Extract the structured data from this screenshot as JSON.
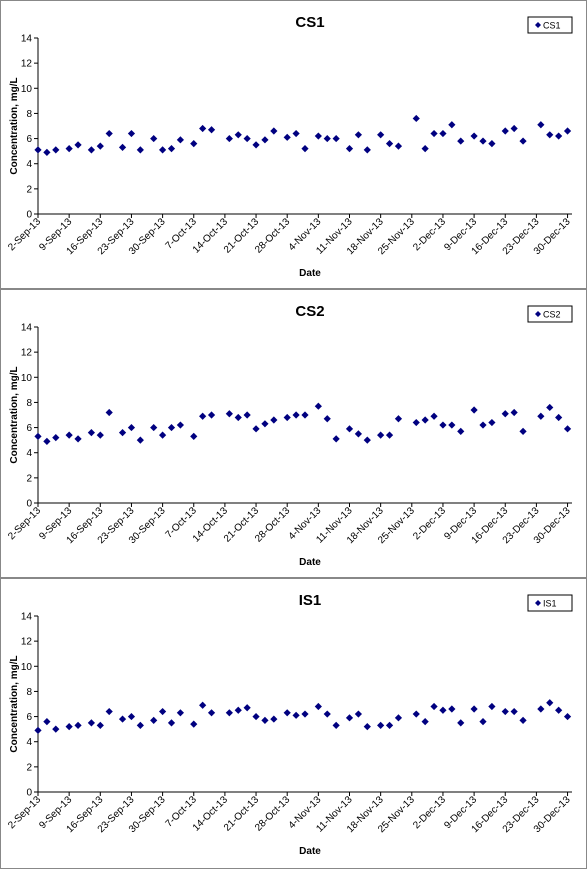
{
  "chart_data": [
    {
      "type": "scatter",
      "title": "CS1",
      "x_label": "Date",
      "y_label": "Concentration, mg/L",
      "legend": "top-right",
      "x": [
        "2013-09-02",
        "2013-09-04",
        "2013-09-06",
        "2013-09-09",
        "2013-09-11",
        "2013-09-14",
        "2013-09-16",
        "2013-09-18",
        "2013-09-21",
        "2013-09-23",
        "2013-09-25",
        "2013-09-28",
        "2013-09-30",
        "2013-10-02",
        "2013-10-04",
        "2013-10-07",
        "2013-10-09",
        "2013-10-11",
        "2013-10-15",
        "2013-10-17",
        "2013-10-19",
        "2013-10-21",
        "2013-10-23",
        "2013-10-25",
        "2013-10-28",
        "2013-10-30",
        "2013-11-01",
        "2013-11-04",
        "2013-11-06",
        "2013-11-08",
        "2013-11-11",
        "2013-11-13",
        "2013-11-15",
        "2013-11-18",
        "2013-11-20",
        "2013-11-22",
        "2013-11-26",
        "2013-11-28",
        "2013-11-30",
        "2013-12-02",
        "2013-12-04",
        "2013-12-06",
        "2013-12-09",
        "2013-12-11",
        "2013-12-13",
        "2013-12-16",
        "2013-12-18",
        "2013-12-20",
        "2013-12-24",
        "2013-12-26",
        "2013-12-28",
        "2013-12-30"
      ],
      "series": [
        {
          "name": "CS1",
          "color": "#000080",
          "values": [
            5.1,
            4.9,
            5.1,
            5.2,
            5.5,
            5.1,
            5.4,
            6.4,
            5.3,
            6.4,
            5.1,
            6.0,
            5.1,
            5.2,
            5.9,
            5.6,
            6.8,
            6.7,
            6.0,
            6.3,
            6.0,
            5.5,
            5.9,
            6.6,
            6.1,
            6.4,
            5.2,
            6.2,
            6.0,
            6.0,
            5.2,
            6.3,
            5.1,
            6.3,
            5.6,
            5.4,
            7.6,
            5.2,
            6.4,
            6.4,
            7.1,
            5.8,
            6.2,
            5.8,
            5.6,
            6.6,
            6.8,
            5.8,
            7.1,
            6.3,
            6.2,
            6.6
          ]
        }
      ],
      "xlim": [
        "2013-09-02",
        "2013-12-31"
      ],
      "xticks": [
        {
          "value": "2013-09-02",
          "label": "2-Sep-13"
        },
        {
          "value": "2013-09-09",
          "label": "9-Sep-13"
        },
        {
          "value": "2013-09-16",
          "label": "16-Sep-13"
        },
        {
          "value": "2013-09-23",
          "label": "23-Sep-13"
        },
        {
          "value": "2013-09-30",
          "label": "30-Sep-13"
        },
        {
          "value": "2013-10-07",
          "label": "7-Oct-13"
        },
        {
          "value": "2013-10-14",
          "label": "14-Oct-13"
        },
        {
          "value": "2013-10-21",
          "label": "21-Oct-13"
        },
        {
          "value": "2013-10-28",
          "label": "28-Oct-13"
        },
        {
          "value": "2013-11-04",
          "label": "4-Nov-13"
        },
        {
          "value": "2013-11-11",
          "label": "11-Nov-13"
        },
        {
          "value": "2013-11-18",
          "label": "18-Nov-13"
        },
        {
          "value": "2013-11-25",
          "label": "25-Nov-13"
        },
        {
          "value": "2013-12-02",
          "label": "2-Dec-13"
        },
        {
          "value": "2013-12-09",
          "label": "9-Dec-13"
        },
        {
          "value": "2013-12-16",
          "label": "16-Dec-13"
        },
        {
          "value": "2013-12-23",
          "label": "23-Dec-13"
        },
        {
          "value": "2013-12-30",
          "label": "30-Dec-13"
        }
      ],
      "ylim": [
        0,
        14
      ],
      "yticks": [
        0,
        2,
        4,
        6,
        8,
        10,
        12,
        14
      ]
    },
    {
      "type": "scatter",
      "title": "CS2",
      "x_label": "Date",
      "y_label": "Concentration, mg/L",
      "legend": "top-right",
      "x": [
        "2013-09-02",
        "2013-09-04",
        "2013-09-06",
        "2013-09-09",
        "2013-09-11",
        "2013-09-14",
        "2013-09-16",
        "2013-09-18",
        "2013-09-21",
        "2013-09-23",
        "2013-09-25",
        "2013-09-28",
        "2013-09-30",
        "2013-10-02",
        "2013-10-04",
        "2013-10-07",
        "2013-10-09",
        "2013-10-11",
        "2013-10-15",
        "2013-10-17",
        "2013-10-19",
        "2013-10-21",
        "2013-10-23",
        "2013-10-25",
        "2013-10-28",
        "2013-10-30",
        "2013-11-01",
        "2013-11-04",
        "2013-11-06",
        "2013-11-08",
        "2013-11-11",
        "2013-11-13",
        "2013-11-15",
        "2013-11-18",
        "2013-11-20",
        "2013-11-22",
        "2013-11-26",
        "2013-11-28",
        "2013-11-30",
        "2013-12-02",
        "2013-12-04",
        "2013-12-06",
        "2013-12-09",
        "2013-12-11",
        "2013-12-13",
        "2013-12-16",
        "2013-12-18",
        "2013-12-20",
        "2013-12-24",
        "2013-12-26",
        "2013-12-28",
        "2013-12-30"
      ],
      "series": [
        {
          "name": "CS2",
          "color": "#000080",
          "values": [
            5.3,
            4.9,
            5.2,
            5.4,
            5.1,
            5.6,
            5.4,
            7.2,
            5.6,
            6.0,
            5.0,
            6.0,
            5.4,
            6.0,
            6.2,
            5.3,
            6.9,
            7.0,
            7.1,
            6.8,
            7.0,
            5.9,
            6.3,
            6.6,
            6.8,
            7.0,
            7.0,
            7.7,
            6.7,
            5.1,
            5.9,
            5.5,
            5.0,
            5.4,
            5.4,
            6.7,
            6.4,
            6.6,
            6.9,
            6.2,
            6.2,
            5.7,
            7.4,
            6.2,
            6.4,
            7.1,
            7.2,
            5.7,
            6.9,
            7.6,
            6.8,
            5.9
          ]
        }
      ],
      "xlim": [
        "2013-09-02",
        "2013-12-31"
      ],
      "xticks": [
        {
          "value": "2013-09-02",
          "label": "2-Sep-13"
        },
        {
          "value": "2013-09-09",
          "label": "9-Sep-13"
        },
        {
          "value": "2013-09-16",
          "label": "16-Sep-13"
        },
        {
          "value": "2013-09-23",
          "label": "23-Sep-13"
        },
        {
          "value": "2013-09-30",
          "label": "30-Sep-13"
        },
        {
          "value": "2013-10-07",
          "label": "7-Oct-13"
        },
        {
          "value": "2013-10-14",
          "label": "14-Oct-13"
        },
        {
          "value": "2013-10-21",
          "label": "21-Oct-13"
        },
        {
          "value": "2013-10-28",
          "label": "28-Oct-13"
        },
        {
          "value": "2013-11-04",
          "label": "4-Nov-13"
        },
        {
          "value": "2013-11-11",
          "label": "11-Nov-13"
        },
        {
          "value": "2013-11-18",
          "label": "18-Nov-13"
        },
        {
          "value": "2013-11-25",
          "label": "25-Nov-13"
        },
        {
          "value": "2013-12-02",
          "label": "2-Dec-13"
        },
        {
          "value": "2013-12-09",
          "label": "9-Dec-13"
        },
        {
          "value": "2013-12-16",
          "label": "16-Dec-13"
        },
        {
          "value": "2013-12-23",
          "label": "23-Dec-13"
        },
        {
          "value": "2013-12-30",
          "label": "30-Dec-13"
        }
      ],
      "ylim": [
        0,
        14
      ],
      "yticks": [
        0,
        2,
        4,
        6,
        8,
        10,
        12,
        14
      ]
    },
    {
      "type": "scatter",
      "title": "IS1",
      "x_label": "Date",
      "y_label": "Concentration, mg/L",
      "legend": "top-right",
      "x": [
        "2013-09-02",
        "2013-09-04",
        "2013-09-06",
        "2013-09-09",
        "2013-09-11",
        "2013-09-14",
        "2013-09-16",
        "2013-09-18",
        "2013-09-21",
        "2013-09-23",
        "2013-09-25",
        "2013-09-28",
        "2013-09-30",
        "2013-10-02",
        "2013-10-04",
        "2013-10-07",
        "2013-10-09",
        "2013-10-11",
        "2013-10-15",
        "2013-10-17",
        "2013-10-19",
        "2013-10-21",
        "2013-10-23",
        "2013-10-25",
        "2013-10-28",
        "2013-10-30",
        "2013-11-01",
        "2013-11-04",
        "2013-11-06",
        "2013-11-08",
        "2013-11-11",
        "2013-11-13",
        "2013-11-15",
        "2013-11-18",
        "2013-11-20",
        "2013-11-22",
        "2013-11-26",
        "2013-11-28",
        "2013-11-30",
        "2013-12-02",
        "2013-12-04",
        "2013-12-06",
        "2013-12-09",
        "2013-12-11",
        "2013-12-13",
        "2013-12-16",
        "2013-12-18",
        "2013-12-20",
        "2013-12-24",
        "2013-12-26",
        "2013-12-28",
        "2013-12-30"
      ],
      "series": [
        {
          "name": "IS1",
          "color": "#000080",
          "values": [
            4.9,
            5.6,
            5.0,
            5.2,
            5.3,
            5.5,
            5.3,
            6.4,
            5.8,
            6.0,
            5.3,
            5.7,
            6.4,
            5.5,
            6.3,
            5.4,
            6.9,
            6.3,
            6.3,
            6.5,
            6.7,
            6.0,
            5.7,
            5.8,
            6.3,
            6.1,
            6.2,
            6.8,
            6.2,
            5.3,
            5.9,
            6.2,
            5.2,
            5.3,
            5.3,
            5.9,
            6.2,
            5.6,
            6.8,
            6.5,
            6.6,
            5.5,
            6.6,
            5.6,
            6.8,
            6.4,
            6.4,
            5.7,
            6.6,
            7.1,
            6.5,
            6.0
          ]
        }
      ],
      "xlim": [
        "2013-09-02",
        "2013-12-31"
      ],
      "xticks": [
        {
          "value": "2013-09-02",
          "label": "2-Sep-13"
        },
        {
          "value": "2013-09-09",
          "label": "9-Sep-13"
        },
        {
          "value": "2013-09-16",
          "label": "16-Sep-13"
        },
        {
          "value": "2013-09-23",
          "label": "23-Sep-13"
        },
        {
          "value": "2013-09-30",
          "label": "30-Sep-13"
        },
        {
          "value": "2013-10-07",
          "label": "7-Oct-13"
        },
        {
          "value": "2013-10-14",
          "label": "14-Oct-13"
        },
        {
          "value": "2013-10-21",
          "label": "21-Oct-13"
        },
        {
          "value": "2013-10-28",
          "label": "28-Oct-13"
        },
        {
          "value": "2013-11-04",
          "label": "4-Nov-13"
        },
        {
          "value": "2013-11-11",
          "label": "11-Nov-13"
        },
        {
          "value": "2013-11-18",
          "label": "18-Nov-13"
        },
        {
          "value": "2013-11-25",
          "label": "25-Nov-13"
        },
        {
          "value": "2013-12-02",
          "label": "2-Dec-13"
        },
        {
          "value": "2013-12-09",
          "label": "9-Dec-13"
        },
        {
          "value": "2013-12-16",
          "label": "16-Dec-13"
        },
        {
          "value": "2013-12-23",
          "label": "23-Dec-13"
        },
        {
          "value": "2013-12-30",
          "label": "30-Dec-13"
        }
      ],
      "ylim": [
        0,
        14
      ],
      "yticks": [
        0,
        2,
        4,
        6,
        8,
        10,
        12,
        14
      ]
    }
  ]
}
